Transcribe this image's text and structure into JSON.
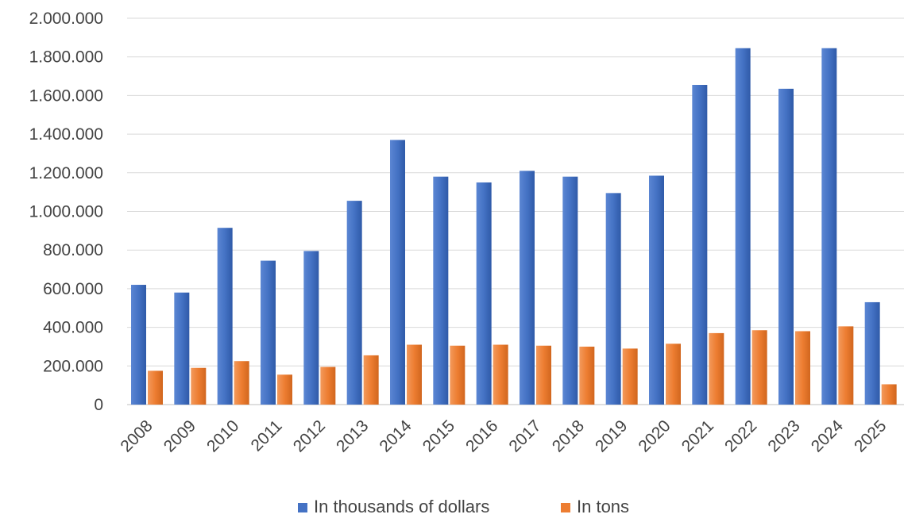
{
  "chart_data": {
    "type": "bar",
    "categories": [
      "2008",
      "2009",
      "2010",
      "2011",
      "2012",
      "2013",
      "2014",
      "2015",
      "2016",
      "2017",
      "2018",
      "2019",
      "2020",
      "2021",
      "2022",
      "2023",
      "2024",
      "2025"
    ],
    "series": [
      {
        "name": "In thousands of dollars",
        "color": "#4472c4",
        "values": [
          620000,
          580000,
          915000,
          745000,
          795000,
          1055000,
          1370000,
          1180000,
          1150000,
          1210000,
          1180000,
          1095000,
          1185000,
          1655000,
          1845000,
          1635000,
          1845000,
          530000
        ]
      },
      {
        "name": "In tons",
        "color": "#ed7d31",
        "values": [
          175000,
          190000,
          225000,
          155000,
          195000,
          255000,
          310000,
          305000,
          310000,
          305000,
          300000,
          290000,
          315000,
          370000,
          385000,
          380000,
          405000,
          105000
        ]
      }
    ],
    "ylim": [
      0,
      2000000
    ],
    "yticks": [
      "0",
      "200.000",
      "400.000",
      "600.000",
      "800.000",
      "1.000.000",
      "1.200.000",
      "1.400.000",
      "1.600.000",
      "1.800.000",
      "2.000.000"
    ],
    "ytick_step": 200000,
    "grid": true,
    "legend": "bottom"
  }
}
